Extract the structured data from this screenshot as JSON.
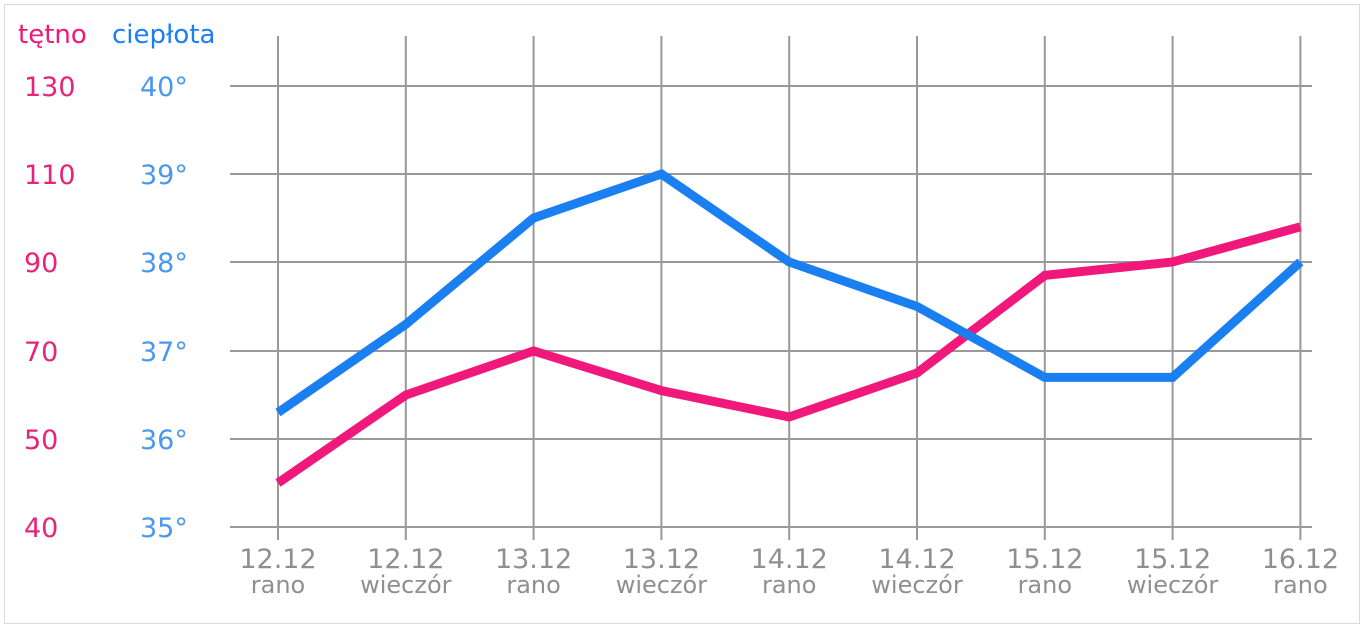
{
  "chart_data": {
    "type": "line",
    "legend": [
      {
        "label": "tętno",
        "color": "#f0187a"
      },
      {
        "label": "ciepłota",
        "color": "#1a7ff0"
      }
    ],
    "pulse_axis": {
      "ticks": [
        "130",
        "110",
        "90",
        "70",
        "50",
        "40"
      ],
      "values": [
        130,
        110,
        90,
        70,
        50,
        40
      ],
      "color": "#e8237b"
    },
    "temp_axis": {
      "ticks": [
        "40°",
        "39°",
        "38°",
        "37°",
        "36°",
        "35°"
      ],
      "values": [
        40,
        39,
        38,
        37,
        36,
        35
      ],
      "color": "#4a98ee"
    },
    "categories": [
      {
        "date": "12.12",
        "time": "rano"
      },
      {
        "date": "12.12",
        "time": "wieczór"
      },
      {
        "date": "13.12",
        "time": "rano"
      },
      {
        "date": "13.12",
        "time": "wieczór"
      },
      {
        "date": "14.12",
        "time": "rano"
      },
      {
        "date": "14.12",
        "time": "wieczór"
      },
      {
        "date": "15.12",
        "time": "rano"
      },
      {
        "date": "15.12",
        "time": "wieczór"
      },
      {
        "date": "16.12",
        "time": "rano"
      }
    ],
    "series": [
      {
        "name": "tętno",
        "color": "#f0187a",
        "axis": "pulse",
        "values": [
          45,
          60,
          70,
          61,
          55,
          65,
          87,
          90,
          98
        ]
      },
      {
        "name": "ciepłota",
        "color": "#1a7ff0",
        "axis": "temp",
        "values": [
          36.3,
          37.3,
          38.5,
          39.0,
          38.0,
          37.5,
          36.7,
          36.7,
          38.0
        ]
      }
    ],
    "grid": true
  }
}
